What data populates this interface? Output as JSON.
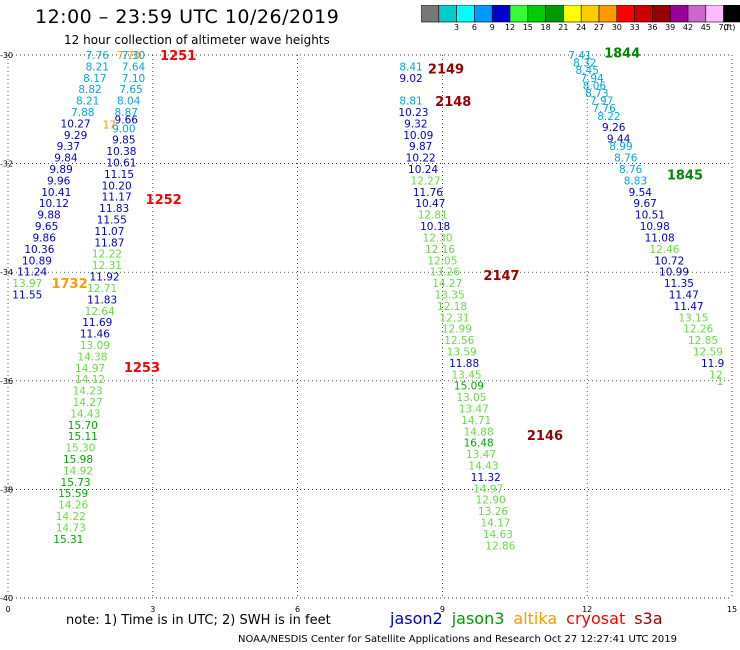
{
  "title": "12:00 – 23:59 UTC 10/26/2019",
  "subtitle": "12 hour collection of altimeter wave heights",
  "note": "note:  1) Time is in UTC; 2) SWH is in feet",
  "footer": "NOAA/NESDIS Center for Satellite Applications and Research    Oct 27 12:27:41 UTC 2019",
  "satellites": [
    {
      "name": "jason2",
      "color": "#0000cc"
    },
    {
      "name": "jason3",
      "color": "#009900"
    },
    {
      "name": "altika",
      "color": "#ff9900"
    },
    {
      "name": "cryosat",
      "color": "#ff0000"
    },
    {
      "name": "s3a",
      "color": "#990000"
    }
  ],
  "colorbar": {
    "unit": "(ft)",
    "bins": [
      {
        "label": "",
        "color": "#777777"
      },
      {
        "label": "3",
        "color": "#00cccc"
      },
      {
        "label": "6",
        "color": "#00ffff"
      },
      {
        "label": "9",
        "color": "#0099ff"
      },
      {
        "label": "12",
        "color": "#0000cc"
      },
      {
        "label": "15",
        "color": "#33ff33"
      },
      {
        "label": "18",
        "color": "#00cc00"
      },
      {
        "label": "21",
        "color": "#009900"
      },
      {
        "label": "24",
        "color": "#ffff00"
      },
      {
        "label": "27",
        "color": "#ffcc00"
      },
      {
        "label": "30",
        "color": "#ff9900"
      },
      {
        "label": "33",
        "color": "#ff0000"
      },
      {
        "label": "36",
        "color": "#cc0000"
      },
      {
        "label": "39",
        "color": "#990000"
      },
      {
        "label": "42",
        "color": "#990099"
      },
      {
        "label": "45",
        "color": "#cc66cc"
      },
      {
        "label": "70",
        "color": "#ffbbff"
      },
      {
        "label": "",
        "color": "#000000"
      }
    ]
  },
  "chart_data": {
    "type": "scatter",
    "xlim": [
      0,
      15
    ],
    "ylim": [
      -40,
      -30
    ],
    "x_ticks": [
      "0",
      "3",
      "6",
      "9",
      "12",
      "15"
    ],
    "y_ticks": [
      "-30",
      "-32",
      "-34",
      "-36",
      "-38",
      "-40"
    ],
    "grid": true,
    "colors": {
      "cyan": "#00a8e0",
      "blue": "#0000cc",
      "lightgreen": "#66dd44",
      "green": "#00aa00",
      "orange": "#ff9900",
      "red": "#ff0000",
      "darkred": "#990000",
      "darkgreen": "#008800"
    },
    "points": [
      {
        "x": 1.85,
        "y": -30.0,
        "v": "7.76",
        "c": "cyan"
      },
      {
        "x": 1.85,
        "y": -30.21,
        "v": "8.21",
        "c": "cyan"
      },
      {
        "x": 1.8,
        "y": -30.42,
        "v": "8.17",
        "c": "cyan"
      },
      {
        "x": 1.7,
        "y": -30.63,
        "v": "8.82",
        "c": "cyan"
      },
      {
        "x": 1.65,
        "y": -30.84,
        "v": "8.21",
        "c": "cyan"
      },
      {
        "x": 1.55,
        "y": -31.05,
        "v": "7.88",
        "c": "cyan"
      },
      {
        "x": 1.4,
        "y": -31.26,
        "v": "10.27",
        "c": "blue"
      },
      {
        "x": 1.4,
        "y": -31.47,
        "v": "9.29",
        "c": "blue"
      },
      {
        "x": 1.25,
        "y": -31.68,
        "v": "9.37",
        "c": "blue"
      },
      {
        "x": 1.2,
        "y": -31.89,
        "v": "9.84",
        "c": "blue"
      },
      {
        "x": 1.1,
        "y": -32.1,
        "v": "9.89",
        "c": "blue"
      },
      {
        "x": 1.05,
        "y": -32.31,
        "v": "9.96",
        "c": "blue"
      },
      {
        "x": 1.0,
        "y": -32.52,
        "v": "10.41",
        "c": "blue"
      },
      {
        "x": 0.95,
        "y": -32.73,
        "v": "10.12",
        "c": "blue"
      },
      {
        "x": 0.85,
        "y": -32.94,
        "v": "9.88",
        "c": "blue"
      },
      {
        "x": 0.8,
        "y": -33.15,
        "v": "9.65",
        "c": "blue"
      },
      {
        "x": 0.75,
        "y": -33.36,
        "v": "9.86",
        "c": "blue"
      },
      {
        "x": 0.65,
        "y": -33.57,
        "v": "10.36",
        "c": "blue"
      },
      {
        "x": 0.6,
        "y": -33.78,
        "v": "10.89",
        "c": "blue"
      },
      {
        "x": 0.5,
        "y": -33.99,
        "v": "11.24",
        "c": "blue"
      },
      {
        "x": 0.4,
        "y": -34.2,
        "v": "13.97",
        "c": "lightgreen"
      },
      {
        "x": 0.4,
        "y": -34.41,
        "v": "11.55",
        "c": "blue"
      },
      {
        "x": 2.5,
        "y": -30.0,
        "v": "7.70",
        "c": "orange"
      },
      {
        "x": 2.6,
        "y": -30.0,
        "v": "7.30",
        "c": "cyan"
      },
      {
        "x": 2.6,
        "y": -30.21,
        "v": "7.64",
        "c": "cyan"
      },
      {
        "x": 2.6,
        "y": -30.42,
        "v": "7.10",
        "c": "cyan"
      },
      {
        "x": 2.55,
        "y": -30.63,
        "v": "7.65",
        "c": "cyan"
      },
      {
        "x": 2.5,
        "y": -30.84,
        "v": "8.04",
        "c": "cyan"
      },
      {
        "x": 2.45,
        "y": -31.05,
        "v": "8.87",
        "c": "cyan"
      },
      {
        "x": 2.45,
        "y": -31.19,
        "v": "9.66",
        "c": "blue"
      },
      {
        "x": 2.1,
        "y": -31.28,
        "v": "17",
        "c": "orange"
      },
      {
        "x": 2.4,
        "y": -31.35,
        "v": "9.00",
        "c": "cyan"
      },
      {
        "x": 2.4,
        "y": -31.56,
        "v": "9.85",
        "c": "blue"
      },
      {
        "x": 2.35,
        "y": -31.77,
        "v": "10.38",
        "c": "blue"
      },
      {
        "x": 2.35,
        "y": -31.98,
        "v": "10.61",
        "c": "blue"
      },
      {
        "x": 2.3,
        "y": -32.19,
        "v": "11.15",
        "c": "blue"
      },
      {
        "x": 2.25,
        "y": -32.4,
        "v": "10.20",
        "c": "blue"
      },
      {
        "x": 2.25,
        "y": -32.61,
        "v": "11.17",
        "c": "blue"
      },
      {
        "x": 2.2,
        "y": -32.82,
        "v": "11.83",
        "c": "blue"
      },
      {
        "x": 2.15,
        "y": -33.03,
        "v": "11.55",
        "c": "blue"
      },
      {
        "x": 2.1,
        "y": -33.24,
        "v": "11.07",
        "c": "blue"
      },
      {
        "x": 2.1,
        "y": -33.45,
        "v": "11.87",
        "c": "blue"
      },
      {
        "x": 2.05,
        "y": -33.66,
        "v": "12.22",
        "c": "lightgreen"
      },
      {
        "x": 2.05,
        "y": -33.87,
        "v": "12.31",
        "c": "lightgreen"
      },
      {
        "x": 2.0,
        "y": -34.08,
        "v": "11.92",
        "c": "blue"
      },
      {
        "x": 1.95,
        "y": -34.29,
        "v": "12.71",
        "c": "lightgreen"
      },
      {
        "x": 1.95,
        "y": -34.5,
        "v": "11.83",
        "c": "blue"
      },
      {
        "x": 1.9,
        "y": -34.71,
        "v": "12.64",
        "c": "lightgreen"
      },
      {
        "x": 1.85,
        "y": -34.92,
        "v": "11.69",
        "c": "blue"
      },
      {
        "x": 1.8,
        "y": -35.13,
        "v": "11.46",
        "c": "blue"
      },
      {
        "x": 1.8,
        "y": -35.34,
        "v": "13.09",
        "c": "lightgreen"
      },
      {
        "x": 1.75,
        "y": -35.55,
        "v": "14.38",
        "c": "lightgreen"
      },
      {
        "x": 1.7,
        "y": -35.76,
        "v": "14.97",
        "c": "lightgreen"
      },
      {
        "x": 1.7,
        "y": -35.97,
        "v": "14.12",
        "c": "lightgreen"
      },
      {
        "x": 1.65,
        "y": -36.18,
        "v": "14.23",
        "c": "lightgreen"
      },
      {
        "x": 1.65,
        "y": -36.39,
        "v": "14.27",
        "c": "lightgreen"
      },
      {
        "x": 1.6,
        "y": -36.6,
        "v": "14.43",
        "c": "lightgreen"
      },
      {
        "x": 1.55,
        "y": -36.81,
        "v": "15.70",
        "c": "green"
      },
      {
        "x": 1.55,
        "y": -37.02,
        "v": "15.11",
        "c": "green"
      },
      {
        "x": 1.5,
        "y": -37.23,
        "v": "15.30",
        "c": "lightgreen"
      },
      {
        "x": 1.45,
        "y": -37.44,
        "v": "15.98",
        "c": "green"
      },
      {
        "x": 1.45,
        "y": -37.65,
        "v": "14.92",
        "c": "lightgreen"
      },
      {
        "x": 1.4,
        "y": -37.86,
        "v": "15.73",
        "c": "green"
      },
      {
        "x": 1.35,
        "y": -38.07,
        "v": "15.59",
        "c": "green"
      },
      {
        "x": 1.35,
        "y": -38.28,
        "v": "14.26",
        "c": "lightgreen"
      },
      {
        "x": 1.3,
        "y": -38.49,
        "v": "14.22",
        "c": "lightgreen"
      },
      {
        "x": 1.3,
        "y": -38.7,
        "v": "14.73",
        "c": "lightgreen"
      },
      {
        "x": 1.25,
        "y": -38.91,
        "v": "15.31",
        "c": "green"
      },
      {
        "x": 8.35,
        "y": -30.21,
        "v": "8.41",
        "c": "cyan"
      },
      {
        "x": 8.35,
        "y": -30.42,
        "v": "9.02",
        "c": "blue"
      },
      {
        "x": 8.35,
        "y": -30.84,
        "v": "8.81",
        "c": "cyan"
      },
      {
        "x": 8.4,
        "y": -31.05,
        "v": "10.23",
        "c": "blue"
      },
      {
        "x": 8.45,
        "y": -31.26,
        "v": "9.32",
        "c": "blue"
      },
      {
        "x": 8.5,
        "y": -31.47,
        "v": "10.09",
        "c": "blue"
      },
      {
        "x": 8.55,
        "y": -31.68,
        "v": "9.87",
        "c": "blue"
      },
      {
        "x": 8.55,
        "y": -31.89,
        "v": "10.22",
        "c": "blue"
      },
      {
        "x": 8.6,
        "y": -32.1,
        "v": "10.24",
        "c": "blue"
      },
      {
        "x": 8.65,
        "y": -32.31,
        "v": "12.27",
        "c": "lightgreen"
      },
      {
        "x": 8.7,
        "y": -32.52,
        "v": "11.76",
        "c": "blue"
      },
      {
        "x": 8.75,
        "y": -32.73,
        "v": "10.47",
        "c": "blue"
      },
      {
        "x": 8.8,
        "y": -32.94,
        "v": "12.81",
        "c": "lightgreen"
      },
      {
        "x": 8.85,
        "y": -33.15,
        "v": "10.18",
        "c": "blue"
      },
      {
        "x": 8.9,
        "y": -33.36,
        "v": "12.30",
        "c": "lightgreen"
      },
      {
        "x": 8.95,
        "y": -33.57,
        "v": "12.16",
        "c": "lightgreen"
      },
      {
        "x": 9.0,
        "y": -33.78,
        "v": "12.05",
        "c": "lightgreen"
      },
      {
        "x": 9.05,
        "y": -33.99,
        "v": "13.26",
        "c": "lightgreen"
      },
      {
        "x": 9.1,
        "y": -34.2,
        "v": "14.27",
        "c": "lightgreen"
      },
      {
        "x": 9.15,
        "y": -34.41,
        "v": "13.35",
        "c": "lightgreen"
      },
      {
        "x": 9.2,
        "y": -34.62,
        "v": "12.18",
        "c": "lightgreen"
      },
      {
        "x": 9.25,
        "y": -34.83,
        "v": "12.31",
        "c": "lightgreen"
      },
      {
        "x": 9.3,
        "y": -35.04,
        "v": "12.99",
        "c": "lightgreen"
      },
      {
        "x": 9.35,
        "y": -35.25,
        "v": "12.56",
        "c": "lightgreen"
      },
      {
        "x": 9.4,
        "y": -35.46,
        "v": "13.59",
        "c": "lightgreen"
      },
      {
        "x": 9.45,
        "y": -35.67,
        "v": "11.88",
        "c": "blue"
      },
      {
        "x": 9.5,
        "y": -35.88,
        "v": "13.45",
        "c": "lightgreen"
      },
      {
        "x": 9.55,
        "y": -36.09,
        "v": "15.09",
        "c": "green"
      },
      {
        "x": 9.6,
        "y": -36.3,
        "v": "13.05",
        "c": "lightgreen"
      },
      {
        "x": 9.65,
        "y": -36.51,
        "v": "13.47",
        "c": "lightgreen"
      },
      {
        "x": 9.7,
        "y": -36.72,
        "v": "14.71",
        "c": "lightgreen"
      },
      {
        "x": 9.75,
        "y": -36.93,
        "v": "14.88",
        "c": "lightgreen"
      },
      {
        "x": 9.75,
        "y": -37.14,
        "v": "16.48",
        "c": "green"
      },
      {
        "x": 9.8,
        "y": -37.35,
        "v": "13.47",
        "c": "lightgreen"
      },
      {
        "x": 9.85,
        "y": -37.56,
        "v": "14.43",
        "c": "lightgreen"
      },
      {
        "x": 9.9,
        "y": -37.77,
        "v": "11.32",
        "c": "blue"
      },
      {
        "x": 9.95,
        "y": -37.98,
        "v": "14.97",
        "c": "lightgreen"
      },
      {
        "x": 10.0,
        "y": -38.19,
        "v": "12.90",
        "c": "lightgreen"
      },
      {
        "x": 10.05,
        "y": -38.4,
        "v": "13.26",
        "c": "lightgreen"
      },
      {
        "x": 10.1,
        "y": -38.61,
        "v": "14.17",
        "c": "lightgreen"
      },
      {
        "x": 10.15,
        "y": -38.82,
        "v": "14.63",
        "c": "lightgreen"
      },
      {
        "x": 10.2,
        "y": -39.03,
        "v": "12.86",
        "c": "lightgreen"
      },
      {
        "x": 11.85,
        "y": -30.0,
        "v": "7.41",
        "c": "cyan"
      },
      {
        "x": 11.95,
        "y": -30.14,
        "v": "8.32",
        "c": "cyan"
      },
      {
        "x": 12.0,
        "y": -30.28,
        "v": "8.45",
        "c": "cyan"
      },
      {
        "x": 12.1,
        "y": -30.42,
        "v": "7.94",
        "c": "cyan"
      },
      {
        "x": 12.15,
        "y": -30.56,
        "v": "8.06",
        "c": "cyan"
      },
      {
        "x": 12.2,
        "y": -30.7,
        "v": "8.73",
        "c": "cyan"
      },
      {
        "x": 12.3,
        "y": -30.84,
        "v": "7.97",
        "c": "cyan"
      },
      {
        "x": 12.35,
        "y": -30.98,
        "v": "7.76",
        "c": "cyan"
      },
      {
        "x": 12.45,
        "y": -31.12,
        "v": "8.22",
        "c": "cyan"
      },
      {
        "x": 12.55,
        "y": -31.33,
        "v": "9.26",
        "c": "blue"
      },
      {
        "x": 12.65,
        "y": -31.54,
        "v": "9.44",
        "c": "blue"
      },
      {
        "x": 12.7,
        "y": -31.68,
        "v": "8.99",
        "c": "cyan"
      },
      {
        "x": 12.8,
        "y": -31.89,
        "v": "8.76",
        "c": "cyan"
      },
      {
        "x": 12.9,
        "y": -32.1,
        "v": "8.76",
        "c": "cyan"
      },
      {
        "x": 13.0,
        "y": -32.31,
        "v": "8.83",
        "c": "cyan"
      },
      {
        "x": 13.1,
        "y": -32.52,
        "v": "9.54",
        "c": "blue"
      },
      {
        "x": 13.2,
        "y": -32.73,
        "v": "9.67",
        "c": "blue"
      },
      {
        "x": 13.3,
        "y": -32.94,
        "v": "10.51",
        "c": "blue"
      },
      {
        "x": 13.4,
        "y": -33.15,
        "v": "10.98",
        "c": "blue"
      },
      {
        "x": 13.5,
        "y": -33.36,
        "v": "11.08",
        "c": "blue"
      },
      {
        "x": 13.6,
        "y": -33.57,
        "v": "12.46",
        "c": "lightgreen"
      },
      {
        "x": 13.7,
        "y": -33.78,
        "v": "10.72",
        "c": "blue"
      },
      {
        "x": 13.8,
        "y": -33.99,
        "v": "10.99",
        "c": "blue"
      },
      {
        "x": 13.9,
        "y": -34.2,
        "v": "11.35",
        "c": "blue"
      },
      {
        "x": 14.0,
        "y": -34.41,
        "v": "11.47",
        "c": "blue"
      },
      {
        "x": 14.1,
        "y": -34.62,
        "v": "11.47",
        "c": "blue"
      },
      {
        "x": 14.2,
        "y": -34.83,
        "v": "13.15",
        "c": "lightgreen"
      },
      {
        "x": 14.3,
        "y": -35.04,
        "v": "12.26",
        "c": "lightgreen"
      },
      {
        "x": 14.4,
        "y": -35.25,
        "v": "12.85",
        "c": "lightgreen"
      },
      {
        "x": 14.5,
        "y": -35.46,
        "v": "12.59",
        "c": "lightgreen"
      },
      {
        "x": 14.6,
        "y": -35.67,
        "v": "11.9",
        "c": "blue"
      },
      {
        "x": 14.7,
        "y": -35.88,
        "v": "12.",
        "c": "lightgreen"
      },
      {
        "x": 14.75,
        "y": -36.0,
        "v": "1",
        "c": "lightgreen"
      }
    ],
    "pass_labels": [
      {
        "x": 3.15,
        "y": -30.0,
        "v": "1251",
        "c": "red"
      },
      {
        "x": 2.85,
        "y": -32.65,
        "v": "1252",
        "c": "red"
      },
      {
        "x": 2.4,
        "y": -35.75,
        "v": "1253",
        "c": "red"
      },
      {
        "x": 0.9,
        "y": -34.2,
        "v": "1732",
        "c": "orange"
      },
      {
        "x": 8.7,
        "y": -30.25,
        "v": "2149",
        "c": "darkred"
      },
      {
        "x": 8.85,
        "y": -30.85,
        "v": "2148",
        "c": "darkred"
      },
      {
        "x": 9.85,
        "y": -34.05,
        "v": "2147",
        "c": "darkred"
      },
      {
        "x": 10.75,
        "y": -37.0,
        "v": "2146",
        "c": "darkred"
      },
      {
        "x": 12.35,
        "y": -29.95,
        "v": "1844",
        "c": "darkgreen"
      },
      {
        "x": 13.65,
        "y": -32.2,
        "v": "1845",
        "c": "darkgreen"
      }
    ]
  }
}
